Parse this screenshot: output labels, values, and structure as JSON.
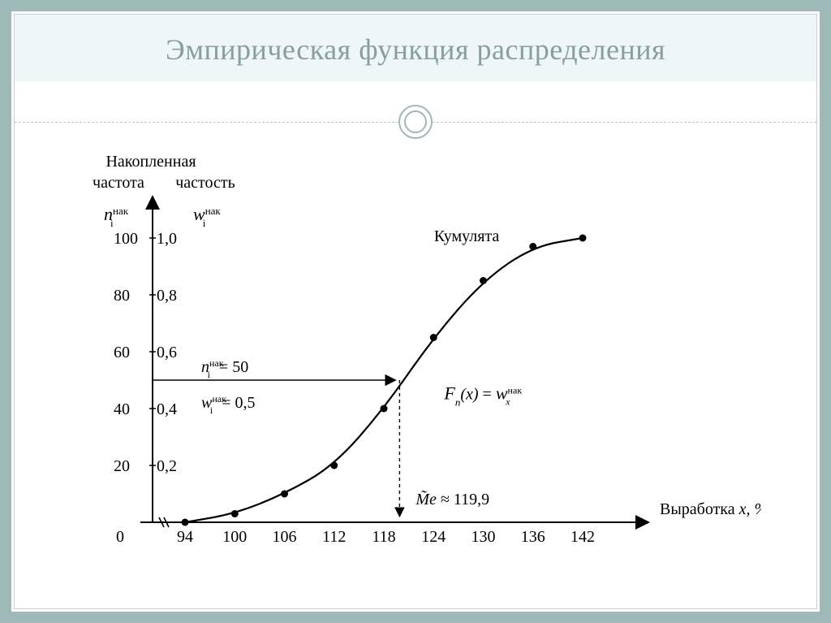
{
  "slide": {
    "title": "Эмпирическая функция распределения",
    "border_color": "#9fb8b8",
    "band_color": "#eef6f6",
    "title_color": "#8a9e9e"
  },
  "chart": {
    "type": "line",
    "background_color": "#ffffff",
    "line_color": "#000000",
    "marker_color": "#000000",
    "marker_radius": 4.5,
    "line_width": 2.2,
    "header": {
      "main": "Накопленная",
      "col1": "частота",
      "col2": "частость"
    },
    "y_axis_left": {
      "symbol_base": "n",
      "symbol_sub": "i",
      "symbol_sup": "нак",
      "ticks": [
        0,
        20,
        40,
        60,
        80,
        100
      ],
      "range": [
        0,
        100
      ]
    },
    "y_axis_right": {
      "symbol_base": "w",
      "symbol_sub": "i",
      "symbol_sup": "нак",
      "ticks": [
        "0,2",
        "0,4",
        "0,6",
        "0,8",
        "1,0"
      ]
    },
    "x_axis": {
      "label_left": "Выработка",
      "label_right": "x,  %",
      "ticks": [
        94,
        100,
        106,
        112,
        118,
        124,
        130,
        136,
        142
      ],
      "range": [
        94,
        142
      ],
      "origin_label": "0",
      "break_mark": true
    },
    "series": {
      "name": "Кумулята",
      "points": [
        {
          "x": 94,
          "y": 0
        },
        {
          "x": 100,
          "y": 3
        },
        {
          "x": 106,
          "y": 10
        },
        {
          "x": 112,
          "y": 20
        },
        {
          "x": 118,
          "y": 40
        },
        {
          "x": 124,
          "y": 65
        },
        {
          "x": 130,
          "y": 85
        },
        {
          "x": 136,
          "y": 97
        },
        {
          "x": 142,
          "y": 100
        }
      ]
    },
    "annotations": {
      "median_line_y": 50,
      "median_x": 119.9,
      "n_label": "= 50",
      "n_prefix_base": "n",
      "n_prefix_sub": "i",
      "n_prefix_sup": "нак",
      "w_label": "= 0,5",
      "w_prefix_base": "w",
      "w_prefix_sub": "i",
      "w_prefix_sup": "нак",
      "fn_lhs_base": "F",
      "fn_lhs_sub": "n",
      "fn_lhs_arg": "(x)",
      "fn_eq": " = ",
      "fn_rhs_base": "w",
      "fn_rhs_sub": "x",
      "fn_rhs_sup": "нак",
      "me_label": "≈ 119,9",
      "me_prefix": "M̃e"
    }
  }
}
